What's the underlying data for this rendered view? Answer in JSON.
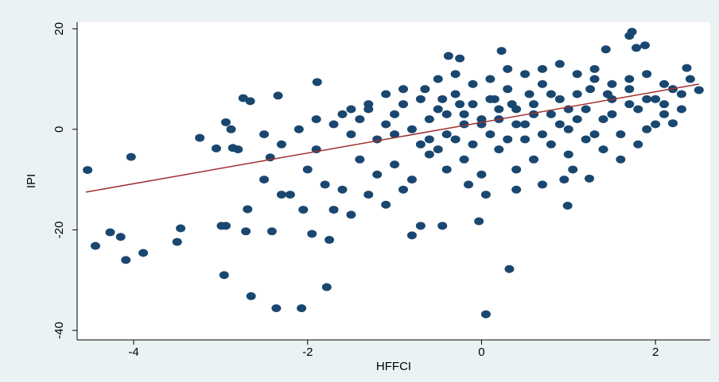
{
  "chart_data": {
    "type": "scatter",
    "x_label": "HFFCI",
    "y_label": "IPI",
    "xlim": [
      -4.65,
      2.63
    ],
    "ylim": [
      -41.9,
      21.3
    ],
    "xticks": [
      -4,
      -2,
      0,
      2
    ],
    "yticks": [
      -40,
      -20,
      0,
      20
    ],
    "series": [
      {
        "color": "#1a476f",
        "x": [
          -4.53,
          -4.44,
          -4.27,
          -4.15,
          -4.09,
          -4.03,
          -3.89,
          -3.5,
          -3.46,
          -3.24,
          -3.05,
          -2.99,
          -2.94,
          -2.96,
          -2.94,
          -2.88,
          -2.86,
          -2.8,
          -2.74,
          -2.66,
          -2.71,
          -2.69,
          -2.65,
          -2.43,
          -2.34,
          -2.41,
          -2.36,
          -2.07,
          -1.95,
          -1.78,
          -1.89,
          0.05,
          0.32,
          -0.03,
          -0.7,
          -0.8,
          -0.45,
          1.7,
          1.73,
          1.88,
          1.78,
          2.36,
          1.43,
          0.99,
          1.24,
          0.23,
          -0.38,
          -0.25,
          2.5,
          2.2,
          -1.6,
          -1.5,
          -1.4,
          -1.3,
          -1.2,
          -1.1,
          -1,
          -0.9,
          -0.8,
          -0.7,
          -0.6,
          -0.5,
          -0.4,
          -0.3,
          -0.2,
          -0.1,
          0,
          0.1,
          0.2,
          0.3,
          0.4,
          0.5,
          0.6,
          0.7,
          0.8,
          0.9,
          1,
          1.1,
          1.2,
          1.3,
          1.4,
          1.5,
          1.6,
          1.7,
          1.8,
          1.9,
          2,
          2.1,
          2.2,
          -1.4,
          -1.2,
          -1,
          -0.8,
          -0.6,
          -0.4,
          -0.2,
          0,
          0.2,
          0.4,
          0.6,
          0.8,
          1,
          1.2,
          1.4,
          1.6,
          1.8,
          2,
          -1.3,
          -1.1,
          -0.9,
          -1.8,
          -2,
          -2.2,
          -1.9,
          -2.1,
          -2.3,
          -2.5,
          -1.7,
          -1.5,
          -1.6,
          -1.75,
          -2.05,
          -2.3,
          -2.5,
          -0.5,
          -0.3,
          -0.1,
          0.1,
          0.3,
          0.5,
          0.7,
          0.9,
          1.1,
          1.3,
          1.5,
          1.7,
          1.9,
          2.1,
          2.3,
          -0.9,
          -1.1,
          -1.3,
          -1.5,
          -1.7,
          -1.9,
          -1,
          -0.7,
          -0.5,
          -0.3,
          -0.1,
          0.1,
          0.3,
          0.5,
          0.7,
          0.9,
          1.1,
          1.3,
          1.5,
          1.7,
          1.9,
          2.1,
          2.3,
          2.4,
          0,
          0.2,
          0.4,
          -0.2,
          0.6,
          0.8,
          1,
          -0.4,
          -0.6,
          0.15,
          0.35,
          0.55,
          -0.25,
          -0.45,
          -0.65,
          1.25,
          1.45,
          0.05,
          0.4,
          0.7,
          -0.15,
          1.05,
          0.95
        ],
        "values": [
          -8.1,
          -23.2,
          -20.5,
          -21.4,
          -26,
          -5.5,
          -24.6,
          -22.4,
          -19.7,
          -1.7,
          -3.8,
          -19.2,
          -19.2,
          -29,
          1.4,
          0,
          -3.7,
          -4,
          6.2,
          5.6,
          -20.3,
          -15.9,
          -33.2,
          -5.6,
          6.7,
          -20.3,
          -35.6,
          -35.6,
          -20.8,
          -31.4,
          9.4,
          -36.8,
          -27.8,
          -18.3,
          -19.2,
          -21.1,
          -19.2,
          18.6,
          19.4,
          16.7,
          16.2,
          12.2,
          15.9,
          -15.2,
          -9.8,
          15.6,
          14.6,
          14.1,
          7.8,
          1.2,
          3,
          -1,
          2,
          4,
          -2,
          1,
          3,
          5,
          0,
          6,
          2,
          4,
          -1,
          7,
          3,
          5,
          1,
          6,
          2,
          8,
          4,
          -2,
          5,
          9,
          3,
          6,
          0,
          7,
          4,
          10,
          2,
          6,
          -1,
          8,
          4,
          0,
          6,
          3,
          8,
          -6,
          -9,
          -7,
          -10,
          -5,
          -8,
          -6,
          -9,
          -4,
          -8,
          -6,
          -3,
          -5,
          -2,
          -4,
          -6,
          -3,
          1,
          -13,
          -15,
          -12,
          -11,
          -8,
          -13,
          -4,
          0,
          -3,
          -1,
          -16,
          -17,
          -12,
          -22,
          -16,
          -13,
          -10,
          10,
          11,
          9,
          10,
          12,
          11,
          12,
          13,
          11,
          12,
          9,
          10,
          11,
          9,
          7,
          8,
          7,
          5,
          4,
          1,
          2,
          -1,
          -3,
          -4,
          -2,
          -3,
          -1,
          -2,
          1,
          -1,
          1,
          2,
          -1,
          3,
          5,
          6,
          5,
          4,
          10,
          2,
          4,
          1,
          1,
          3,
          7,
          4,
          3,
          -2,
          6,
          5,
          7,
          5,
          6,
          8,
          8,
          7,
          -13,
          -12,
          -11,
          -11,
          -8,
          -10
        ]
      },
      {
        "type": "line",
        "color": "#a03030",
        "x": [
          -4.55,
          2.5
        ],
        "values": [
          -12.5,
          9
        ]
      }
    ]
  }
}
